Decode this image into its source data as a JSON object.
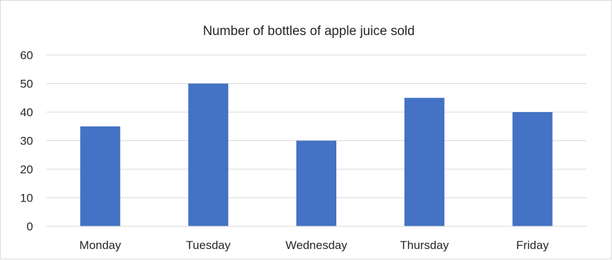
{
  "chart_data": {
    "type": "bar",
    "title": "Number of bottles of apple juice sold",
    "xlabel": "",
    "ylabel": "",
    "categories": [
      "Monday",
      "Tuesday",
      "Wednesday",
      "Thursday",
      "Friday"
    ],
    "values": [
      35,
      50,
      30,
      45,
      40
    ],
    "ylim": [
      0,
      60
    ],
    "yticks": [
      0,
      10,
      20,
      30,
      40,
      50,
      60
    ],
    "grid": true,
    "legend": "none",
    "bar_color": "#4472c4"
  }
}
